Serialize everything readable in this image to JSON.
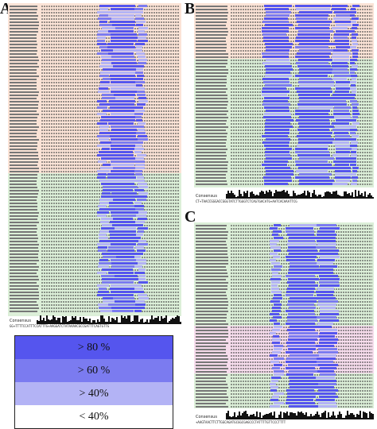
{
  "panels": {
    "a_letter": "A",
    "b_letter": "B",
    "c_letter": "C",
    "consensus_label": "Consensus",
    "a_consensus_seq": "GG+TTTTCCATTTCCATTTG+AAGGATCTATAAAACGCCGATTTCAGTGTTG",
    "b_consensus_seq": "CT+TAACCGGGACCGGGTATCTTGGGTCTCAGTGACATG+AATCACAAATTCG",
    "c_consensus_seq": "+AAGTAACTTCTTGGCAGATGCGGCGAGCCCTATTTTGTTCCCTTTT"
  },
  "legend": {
    "colors": {
      "gt80": "#5555ee",
      "gt60": "#7b7bf0",
      "gt40": "#b3b3f5",
      "lt40": "#ffffff"
    },
    "items": [
      {
        "label": "> 80 %",
        "color": "#5555ee"
      },
      {
        "label": "> 60 %",
        "color": "#7b7bf0"
      },
      {
        "label": "> 40%",
        "color": "#b3b3f5"
      },
      {
        "label": "< 40%",
        "color": "#ffffff"
      }
    ]
  }
}
